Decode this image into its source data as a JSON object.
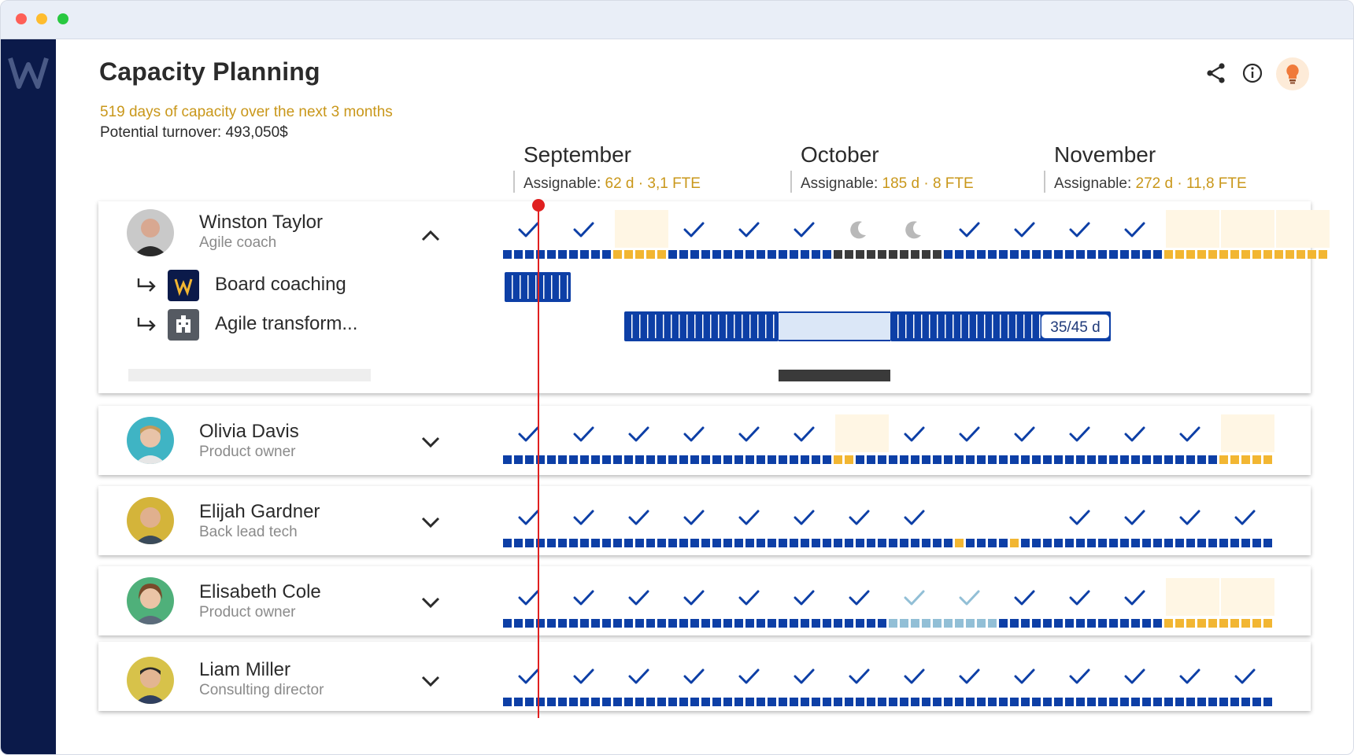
{
  "app": {
    "title": "Capacity Planning",
    "summary": "519 days of capacity over the next 3 months",
    "turnover": "Potential turnover: 493,050$"
  },
  "header_icons": [
    "share-icon",
    "info-icon",
    "lightbulb-icon"
  ],
  "colors": {
    "sidebar": "#0b1a4a",
    "assigned": "#0d3fa6",
    "free": "#f2b632",
    "free_bg": "#fff6e4",
    "off": "#3a3a3a",
    "tentative": "#92bfd6",
    "accent_text": "#c9971a",
    "today_line": "#e02020"
  },
  "months": [
    {
      "name": "September",
      "assign_label": "Assignable:",
      "assign_value": "62 d · 3,1 FTE"
    },
    {
      "name": "October",
      "assign_label": "Assignable:",
      "assign_value": "185 d · 8 FTE"
    },
    {
      "name": "November",
      "assign_label": "Assignable:",
      "assign_value": "272 d · 11,8 FTE"
    }
  ],
  "people": [
    {
      "name": "Winston Taylor",
      "role": "Agile coach",
      "expanded": true,
      "weeks": [
        "check",
        "check",
        "free",
        "check",
        "check",
        "check",
        "moon",
        "moon",
        "check",
        "check",
        "check",
        "check",
        "free",
        "free",
        "free"
      ],
      "projects": [
        {
          "name": "Board coaching",
          "logo_icon": "w-logo-icon"
        },
        {
          "name": "Agile transform...",
          "logo_icon": "building-icon",
          "progress_label": "35/45 d"
        }
      ]
    },
    {
      "name": "Olivia Davis",
      "role": "Product owner",
      "expanded": false,
      "weeks": [
        "check",
        "check",
        "check",
        "check",
        "check",
        "check",
        "partial",
        "check",
        "check",
        "check",
        "check",
        "check",
        "check",
        "free"
      ]
    },
    {
      "name": "Elijah Gardner",
      "role": "Back lead tech",
      "expanded": false,
      "weeks": [
        "check",
        "check",
        "check",
        "check",
        "check",
        "check",
        "check",
        "check",
        "partial",
        "partial",
        "check",
        "check",
        "check",
        "check"
      ]
    },
    {
      "name": "Elisabeth Cole",
      "role": "Product owner",
      "expanded": false,
      "weeks": [
        "check",
        "check",
        "check",
        "check",
        "check",
        "check",
        "check",
        "tentative",
        "tentative",
        "check",
        "check",
        "check",
        "free",
        "free"
      ]
    },
    {
      "name": "Liam Miller",
      "role": "Consulting director",
      "expanded": false,
      "weeks": [
        "check",
        "check",
        "check",
        "check",
        "check",
        "check",
        "check",
        "check",
        "check",
        "check",
        "check",
        "check",
        "check",
        "check"
      ]
    }
  ]
}
